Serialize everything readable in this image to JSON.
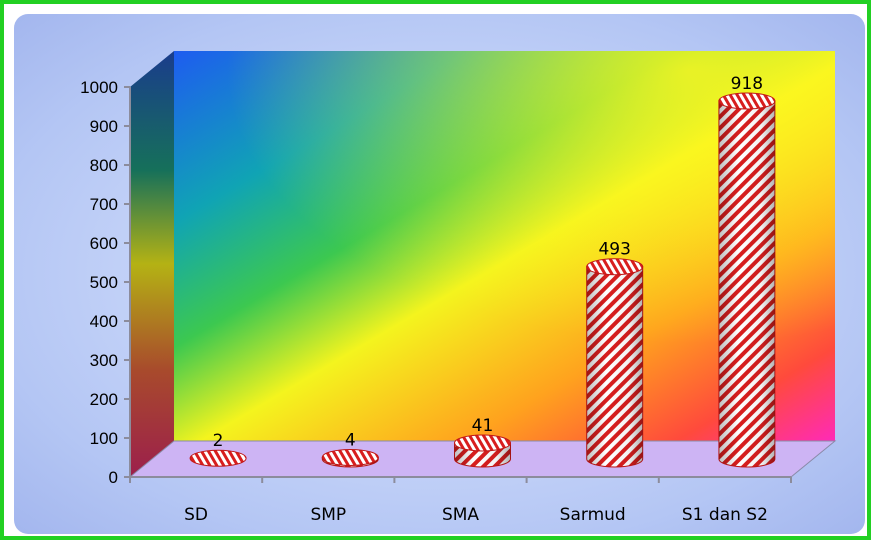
{
  "chart_data": {
    "type": "bar",
    "categories": [
      "SD",
      "SMP",
      "SMA",
      "Sarmud",
      "S1 dan S2"
    ],
    "values": [
      2,
      4,
      41,
      493,
      918
    ],
    "data_labels": [
      "2",
      "4",
      "41",
      "493",
      "918"
    ],
    "y_ticks": [
      "0",
      "100",
      "200",
      "300",
      "400",
      "500",
      "600",
      "700",
      "800",
      "900",
      "1000"
    ],
    "ylim": [
      0,
      1000
    ],
    "title": "",
    "xlabel": "",
    "ylabel": "",
    "style": "3d-cylinder",
    "bar_fill": "red-white-diagonal-stripes",
    "grid": false,
    "colors": {
      "frame_border": "#22d022",
      "bar_stripe": "#d81e1e",
      "floor": "#cdb4f4",
      "chart_background": "#b4c6f4"
    }
  }
}
